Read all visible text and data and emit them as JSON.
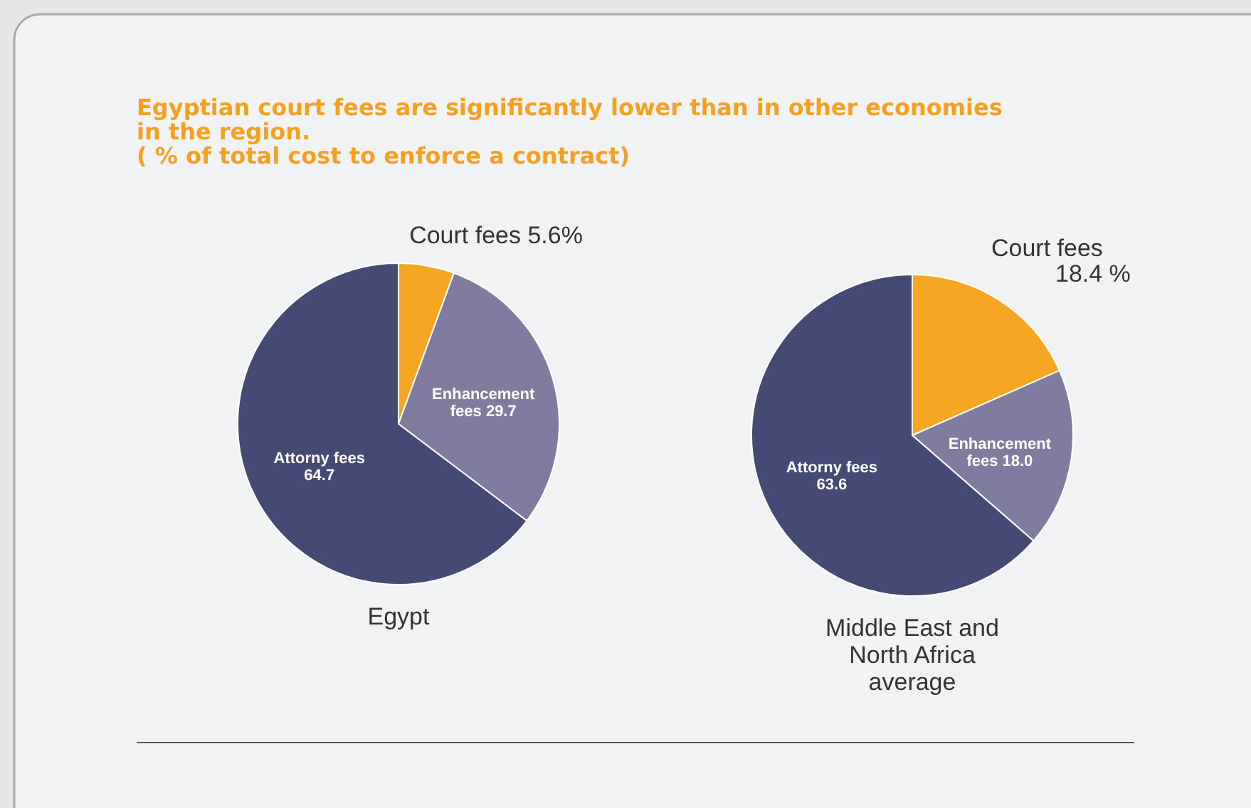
{
  "chart_data": [
    {
      "type": "pie",
      "title": "Egyptian court fees are significantly lower than in other economies\nin the region.\n( % of total cost to enforce a contract)",
      "xlabel": "Egypt",
      "categories": [
        "Court fees",
        "Enhancement fees",
        "Attorny fees"
      ],
      "values": [
        5.6,
        29.7,
        64.7
      ],
      "value_labels": [
        "5.6%",
        "29.7",
        "64.7"
      ],
      "colors": [
        "#f5a623",
        "#7f7c9f",
        "#454a75"
      ]
    },
    {
      "type": "pie",
      "xlabel": "Middle East and North Africa average",
      "categories": [
        "Court fees",
        "Enhancement fees",
        "Attorny fees"
      ],
      "values": [
        18.4,
        18.0,
        63.6
      ],
      "value_labels": [
        "18.4 %",
        "18.0",
        "63.6"
      ],
      "colors": [
        "#f5a623",
        "#7f7c9f",
        "#454a75"
      ]
    }
  ]
}
